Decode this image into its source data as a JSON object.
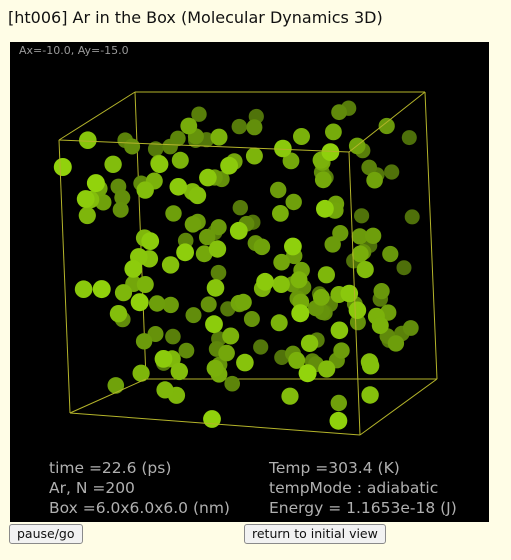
{
  "window": {
    "title": "[ht006] Ar in the Box (Molecular Dynamics 3D)"
  },
  "view": {
    "angles": "Ax=-10.0, Ay=-15.0"
  },
  "stats": {
    "time": "time =22.6 (ps)",
    "species": "Ar, N =200",
    "box": "Box =6.0x6.0x6.0 (nm)",
    "temp": "Temp =303.4 (K)",
    "temp_mode": "tempMode : adiabatic",
    "energy": "Energy = 1.1653e-18 (J)"
  },
  "controls": {
    "pause_label": "pause/go",
    "reset_label": "return to initial view"
  },
  "colors": {
    "particle_front": "#92d40c",
    "particle_back": "#4d6e0a",
    "box_edge": "#b4b42a",
    "background": "#000000",
    "panel_bg": "#fffde6"
  }
}
